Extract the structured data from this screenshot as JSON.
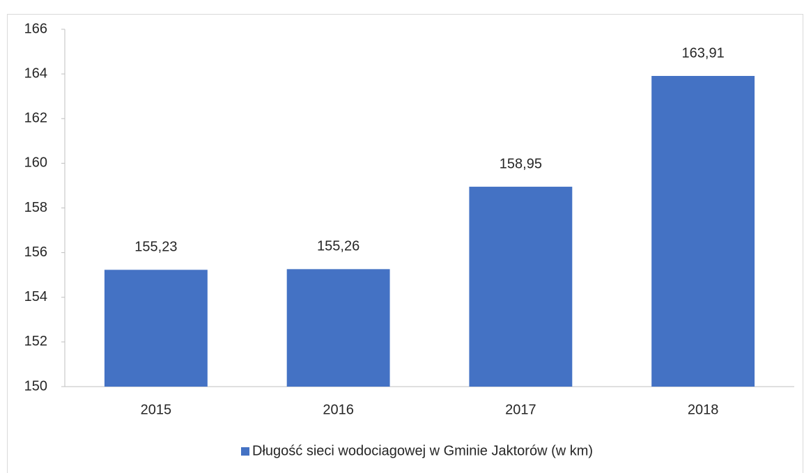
{
  "chart_data": {
    "type": "bar",
    "categories": [
      "2015",
      "2016",
      "2017",
      "2018"
    ],
    "series": [
      {
        "name": "Długość sieci wodociagowej w Gminie Jaktorów (w km)",
        "color": "#4472c4",
        "values": [
          155.23,
          155.26,
          158.95,
          163.91
        ],
        "value_labels": [
          "155,23",
          "155,26",
          "158,95",
          "163,91"
        ]
      }
    ],
    "ylim": [
      150,
      166
    ],
    "yticks": [
      150,
      152,
      154,
      156,
      158,
      160,
      162,
      164,
      166
    ],
    "grid": false,
    "legend": "bottom"
  }
}
